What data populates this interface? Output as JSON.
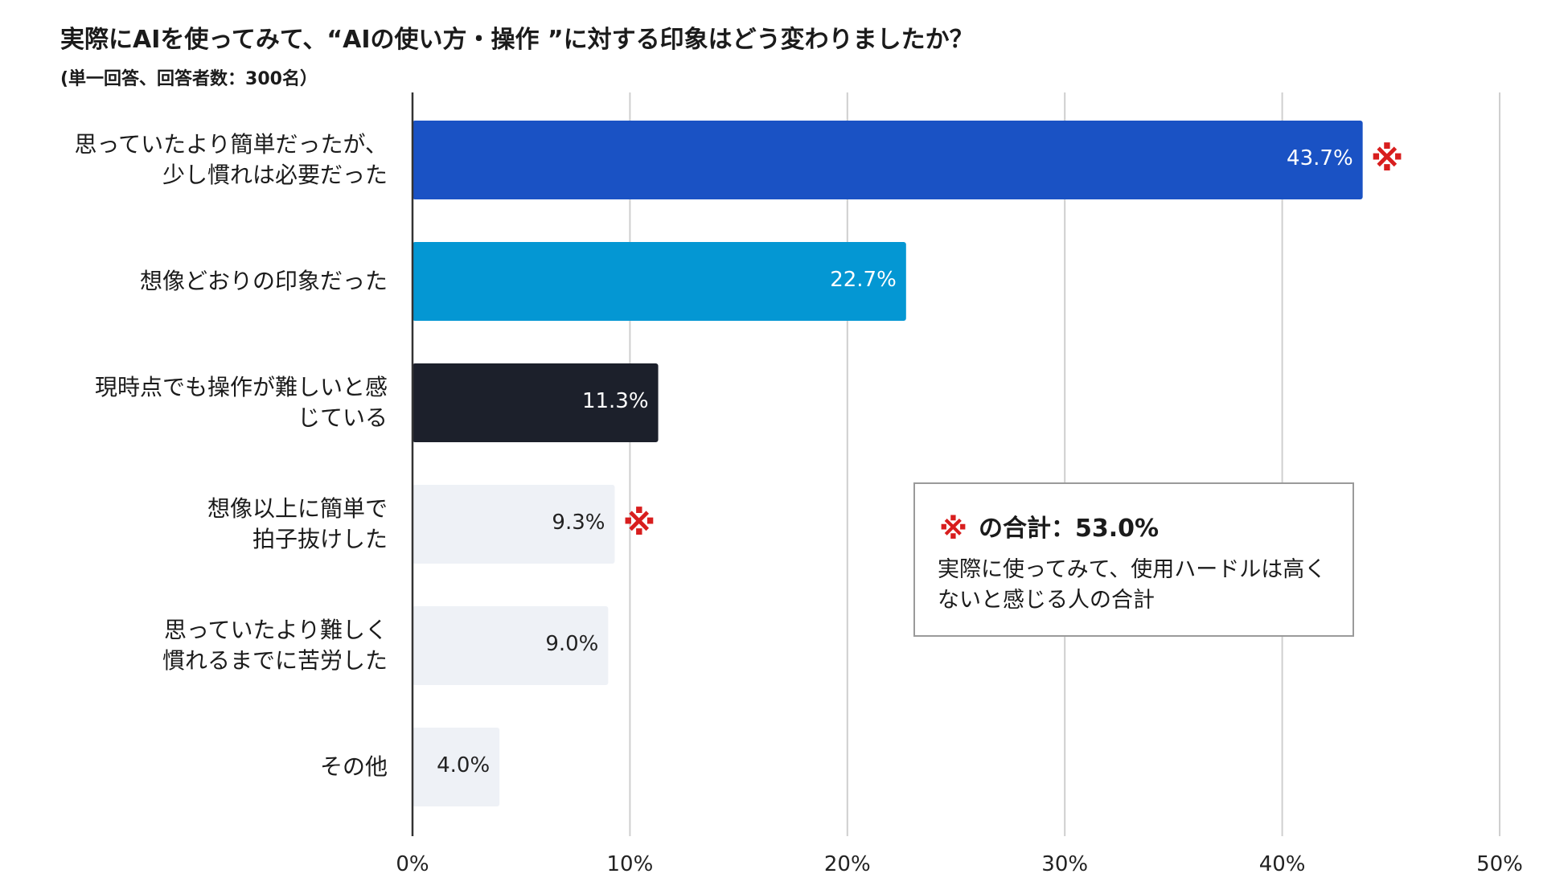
{
  "chart_data": {
    "type": "bar",
    "orientation": "horizontal",
    "title": "実際にAIを使ってみて、“AIの使い方・操作 ”に対する印象はどう変わりましたか？",
    "subtitle": "(単一回答、回答者数：300名）",
    "categories": [
      "思っていたより簡単だったが、\n少し慣れは必要だった",
      "想像どおりの印象だった",
      "現時点でも操作が難しいと感\nじている",
      "想像以上に簡単で\n拍子抜けした",
      "思っていたより難しく\n慣れるまでに苦労した",
      "その他"
    ],
    "values": [
      43.7,
      22.7,
      11.3,
      9.3,
      9.0,
      4.0
    ],
    "value_labels": [
      "43.7%",
      "22.7%",
      "11.3%",
      "9.3%",
      "9.0%",
      "4.0%"
    ],
    "bar_colors": [
      "#1a52c4",
      "#0497d3",
      "#1c202b",
      "#eef1f6",
      "#eef1f6",
      "#eef1f6"
    ],
    "label_colors": [
      "#ffffff",
      "#ffffff",
      "#ffffff",
      "#222222",
      "#222222",
      "#222222"
    ],
    "xlim": [
      0,
      50
    ],
    "xticks": [
      0,
      10,
      20,
      30,
      40,
      50
    ],
    "xtick_labels": [
      "0%",
      "10%",
      "20%",
      "30%",
      "40%",
      "50%"
    ],
    "grid": true,
    "marked_bars": [
      0,
      3
    ],
    "reference_mark": "※"
  },
  "note": {
    "mark": "※",
    "heading": "の合計：53.0%",
    "body": "実際に使ってみて、使用ハードルは高くないと感じる人の合計",
    "mark_color": "#d81e1e"
  }
}
